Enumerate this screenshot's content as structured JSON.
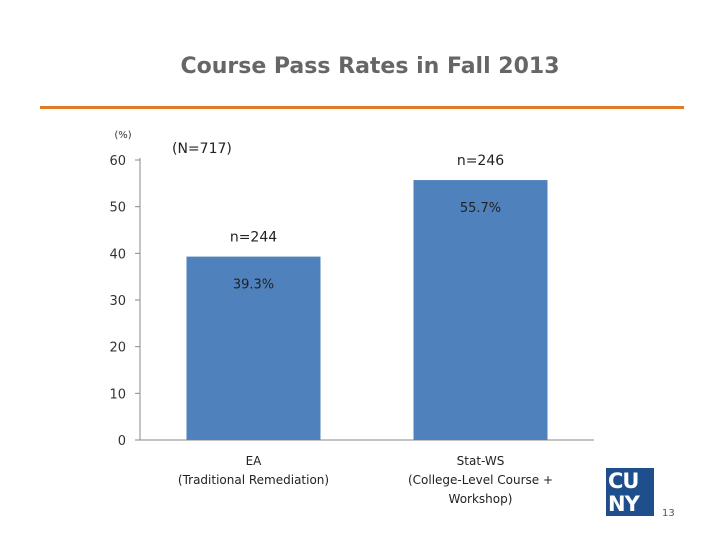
{
  "slide": {
    "title": "Course Pass Rates in Fall 2013",
    "page_number": "13",
    "logo_text": "CUNY",
    "accent_color": "#e07b24"
  },
  "chart_data": {
    "type": "bar",
    "title": "Course Pass Rates in Fall 2013",
    "ylabel": "(%)",
    "ylim": [
      0,
      60
    ],
    "yticks": [
      0,
      10,
      20,
      30,
      40,
      50,
      60
    ],
    "grid": false,
    "bar_color": "#4f81bd",
    "total_note": "(N=717)",
    "categories": [
      "EA\n(Traditional Remediation)",
      "Stat-WS\n(College-Level Course +\nWorkshop)"
    ],
    "values": [
      39.3,
      55.7
    ],
    "value_labels": [
      "39.3%",
      "55.7%"
    ],
    "n_labels": [
      "n=244",
      "n=246"
    ]
  }
}
